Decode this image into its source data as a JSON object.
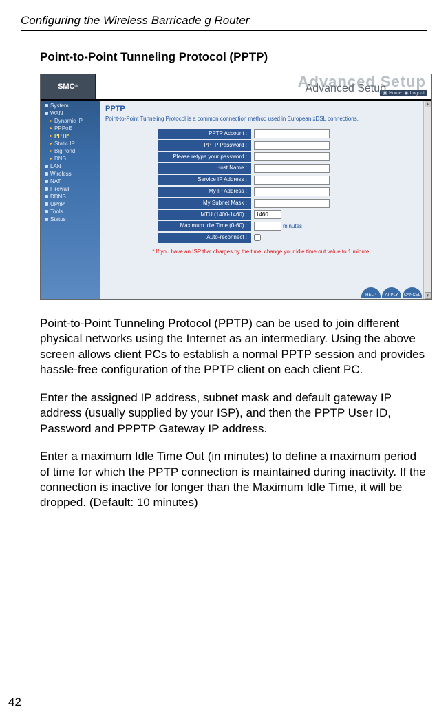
{
  "runningHeader": "Configuring the Wireless Barricade g Router",
  "sectionTitle": "Point-to-Point Tunneling Protocol (PPTP)",
  "pageNumber": "42",
  "screenshot": {
    "logo": "SMC",
    "logoSuffix": "®",
    "logoSub": "N e t w o r k s",
    "ghostTitle": "Advanced Setup",
    "title": "Advanced Setup",
    "userbarHome": "Home",
    "userbarLogout": "Logout",
    "sidebar": {
      "items": [
        {
          "label": "System",
          "type": "top"
        },
        {
          "label": "WAN",
          "type": "top"
        },
        {
          "label": "Dynamic IP",
          "type": "sub"
        },
        {
          "label": "PPPoE",
          "type": "sub"
        },
        {
          "label": "PPTP",
          "type": "sub",
          "hl": true
        },
        {
          "label": "Static IP",
          "type": "sub"
        },
        {
          "label": "BigPond",
          "type": "sub"
        },
        {
          "label": "DNS",
          "type": "sub"
        },
        {
          "label": "LAN",
          "type": "top"
        },
        {
          "label": "Wireless",
          "type": "top"
        },
        {
          "label": "NAT",
          "type": "top"
        },
        {
          "label": "Firewall",
          "type": "top"
        },
        {
          "label": "DDNS",
          "type": "top"
        },
        {
          "label": "UPnP",
          "type": "top"
        },
        {
          "label": "Tools",
          "type": "top"
        },
        {
          "label": "Status",
          "type": "top"
        }
      ]
    },
    "main": {
      "title": "PPTP",
      "desc": "Point-to-Point Tunneling Protocol is a common connection method used in European xDSL connections.",
      "rows": [
        {
          "label": "PPTP Account :",
          "field": "text",
          "w": "long",
          "value": ""
        },
        {
          "label": "PPTP Password :",
          "field": "text",
          "w": "long",
          "value": ""
        },
        {
          "label": "Please retype your password :",
          "field": "text",
          "w": "long",
          "value": ""
        },
        {
          "label": "Host Name :",
          "field": "text",
          "w": "long",
          "value": ""
        },
        {
          "label": "Service IP Address :",
          "field": "text",
          "w": "long",
          "value": ""
        },
        {
          "label": "My IP Address :",
          "field": "text",
          "w": "long",
          "value": ""
        },
        {
          "label": "My Subnet Mask :",
          "field": "text",
          "w": "long",
          "value": ""
        },
        {
          "label": "MTU (1400-1460) :",
          "field": "text",
          "w": "short",
          "value": "1460"
        },
        {
          "label": "Maximum Idle Time (0-60) :",
          "field": "text",
          "w": "short",
          "value": "",
          "unit": "minutes"
        },
        {
          "label": "Auto-reconnect :",
          "field": "checkbox"
        }
      ],
      "note": "* If you have an ISP that charges by the time, change your idle time out value to 1 minute.",
      "buttons": [
        "HELP",
        "APPLY",
        "CANCEL"
      ]
    }
  },
  "paragraphs": [
    "Point-to-Point Tunneling Protocol (PPTP) can be used to join different physical networks using the Internet as an intermediary. Using the above screen allows client PCs to establish a normal PPTP session and provides hassle-free configuration of the PPTP client on each client PC.",
    "Enter the assigned IP address, subnet mask and default gateway IP address (usually supplied by your ISP), and then the PPTP User ID, Password and PPPTP Gateway IP address.",
    "Enter a maximum Idle Time Out (in minutes) to define a maximum period of time for which the PPTP connection is maintained during inactivity. If the connection is inactive for longer than the Maximum Idle Time, it will be dropped. (Default: 10 minutes)"
  ]
}
